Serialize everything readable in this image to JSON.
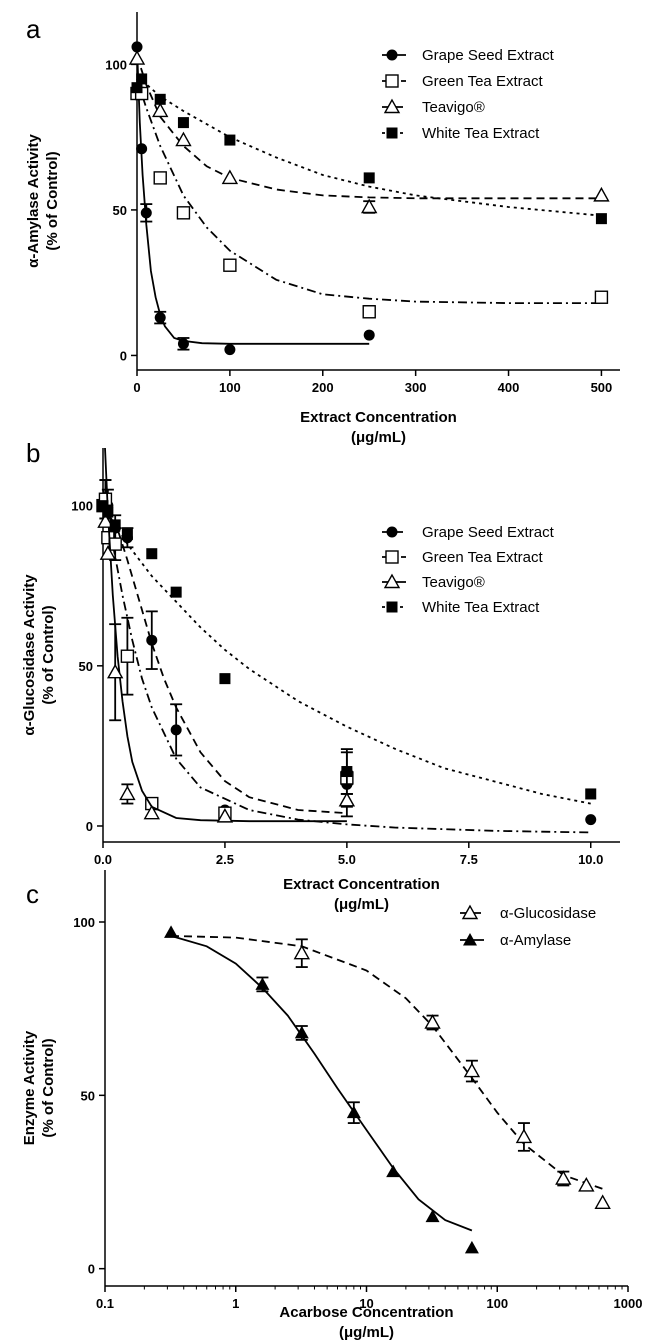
{
  "chart_data": [
    {
      "panel": "a",
      "type": "scatter",
      "xlabel": [
        "Extract Concentration",
        "(μg/mL)"
      ],
      "ylabel": [
        "α-Amylase Activity",
        "(% of Control)"
      ],
      "xlim": [
        0,
        520
      ],
      "ylim": [
        -5,
        118
      ],
      "xticks": [
        0,
        100,
        200,
        300,
        400,
        500
      ],
      "xtick_labels": [
        "0",
        "100",
        "200",
        "300",
        "400",
        "500"
      ],
      "yticks": [
        0,
        50,
        100
      ],
      "ytick_labels": [
        "0",
        "50",
        "100"
      ],
      "legend_position": "top-right",
      "series": [
        {
          "name": "Grape Seed Extract",
          "marker": "filled-circle",
          "line": "solid",
          "x": [
            0,
            5,
            10,
            25,
            50,
            100,
            250
          ],
          "y": [
            106,
            71,
            49,
            13,
            4,
            2,
            7
          ],
          "err": [
            0,
            0,
            3,
            2,
            2,
            0,
            0
          ],
          "fit_x": [
            0,
            3,
            6,
            10,
            15,
            20,
            25,
            30,
            40,
            50,
            70,
            100,
            150,
            200,
            250
          ],
          "fit_y": [
            106,
            80,
            62,
            45,
            29,
            20,
            14,
            10,
            6,
            5,
            4.2,
            4,
            4,
            4,
            4
          ]
        },
        {
          "name": "Green Tea Extract",
          "marker": "open-square",
          "line": "dash-dot",
          "x": [
            0,
            5,
            25,
            50,
            100,
            250,
            500
          ],
          "y": [
            90,
            90,
            61,
            49,
            31,
            15,
            20
          ],
          "err": [
            0,
            0,
            0,
            0,
            0,
            2,
            0
          ],
          "fit_x": [
            0,
            10,
            25,
            50,
            75,
            100,
            150,
            200,
            250,
            300,
            400,
            500
          ],
          "fit_y": [
            95,
            85,
            72,
            55,
            44,
            36,
            26,
            21,
            19.5,
            18.5,
            18,
            18
          ]
        },
        {
          "name": "Teavigo®",
          "marker": "open-triangle",
          "line": "dashed",
          "x": [
            0,
            25,
            50,
            100,
            250,
            500
          ],
          "y": [
            102,
            84,
            74,
            61,
            51,
            55
          ],
          "err": [
            0,
            0,
            0,
            0,
            2,
            0
          ],
          "fit_x": [
            0,
            10,
            25,
            50,
            75,
            100,
            150,
            200,
            250,
            300,
            400,
            500
          ],
          "fit_y": [
            103,
            93,
            82,
            72,
            65,
            61,
            57,
            55,
            54.3,
            54,
            54,
            54
          ]
        },
        {
          "name": "White Tea Extract",
          "marker": "filled-square",
          "line": "dotted",
          "x": [
            0,
            5,
            25,
            50,
            100,
            250,
            500
          ],
          "y": [
            92,
            95,
            88,
            80,
            74,
            61,
            47
          ],
          "err": [
            0,
            0,
            0,
            0,
            0,
            0,
            0
          ],
          "fit_x": [
            0,
            25,
            50,
            100,
            150,
            200,
            250,
            300,
            400,
            500
          ],
          "fit_y": [
            96,
            89,
            84,
            75,
            68,
            62,
            58,
            55,
            51,
            48
          ]
        }
      ]
    },
    {
      "panel": "b",
      "type": "scatter",
      "xlabel": [
        "Extract Concentration",
        "(μg/mL)"
      ],
      "ylabel": [
        "α-Glucosidase Activity",
        "(% of Control)"
      ],
      "xlim": [
        0,
        10.6
      ],
      "ylim": [
        -5,
        118
      ],
      "xticks": [
        0,
        2.5,
        5,
        7.5,
        10
      ],
      "xtick_labels": [
        "0.0",
        "2.5",
        "5.0",
        "7.5",
        "10.0"
      ],
      "yticks": [
        0,
        50,
        100
      ],
      "ytick_labels": [
        "0",
        "50",
        "100"
      ],
      "legend_position": "top-right",
      "series": [
        {
          "name": "Grape Seed Extract",
          "marker": "filled-circle",
          "line": "dashed",
          "x": [
            0.05,
            0.1,
            0.25,
            0.5,
            1,
            1.5,
            2.5,
            5,
            10
          ],
          "y": [
            102,
            100,
            93,
            90,
            58,
            30,
            5,
            13,
            2
          ],
          "err": [
            6,
            5,
            4,
            3,
            9,
            8,
            0,
            10,
            0
          ],
          "fit_x": [
            0,
            0.25,
            0.5,
            0.75,
            1,
            1.25,
            1.5,
            2,
            2.5,
            3,
            4,
            5
          ],
          "fit_y": [
            103,
            95,
            83,
            70,
            57,
            46,
            37,
            23,
            14,
            9,
            5,
            4
          ]
        },
        {
          "name": "Green Tea Extract",
          "marker": "open-square",
          "line": "dash-dot",
          "x": [
            0,
            0.05,
            0.1,
            0.25,
            0.5,
            1,
            2.5,
            5
          ],
          "y": [
            100,
            102,
            90,
            88,
            53,
            7,
            4,
            15
          ],
          "err": [
            0,
            6,
            0,
            5,
            12,
            0,
            0,
            2
          ],
          "fit_x": [
            0,
            0.2,
            0.4,
            0.6,
            0.8,
            1,
            1.5,
            2,
            3,
            4,
            5,
            6,
            7,
            8,
            9,
            10
          ],
          "fit_y": [
            105,
            88,
            72,
            58,
            46,
            37,
            21,
            12,
            5,
            2,
            0.5,
            -0.5,
            -1,
            -1.5,
            -1.8,
            -2
          ]
        },
        {
          "name": "Teavigo®",
          "marker": "open-triangle",
          "line": "solid",
          "x": [
            0.05,
            0.1,
            0.25,
            0.5,
            1,
            2.5,
            5
          ],
          "y": [
            95,
            85,
            48,
            10,
            4,
            3,
            8
          ],
          "err": [
            0,
            0,
            15,
            3,
            0,
            0,
            2
          ],
          "fit_x": [
            0.04,
            0.1,
            0.2,
            0.3,
            0.4,
            0.5,
            0.6,
            0.8,
            1,
            1.5,
            2,
            3,
            4,
            5
          ],
          "fit_y": [
            118,
            98,
            72,
            53,
            39,
            28,
            20,
            11,
            6,
            2.5,
            1.8,
            1.5,
            1.5,
            1.5
          ]
        },
        {
          "name": "White Tea Extract",
          "marker": "filled-square",
          "line": "dotted",
          "x": [
            0,
            0.1,
            0.25,
            0.5,
            1,
            1.5,
            2.5,
            5,
            10
          ],
          "y": [
            100,
            98,
            94,
            91,
            85,
            73,
            46,
            17,
            10
          ],
          "err": [
            0,
            0,
            0,
            0,
            0,
            0,
            0,
            7,
            0
          ],
          "fit_x": [
            0,
            0.5,
            1,
            1.5,
            2,
            2.5,
            3,
            4,
            5,
            6,
            7,
            8,
            9,
            10
          ],
          "fit_y": [
            100,
            88,
            78,
            70,
            62,
            55,
            49,
            39,
            31,
            24,
            18,
            14,
            10,
            7
          ]
        }
      ]
    },
    {
      "panel": "c",
      "type": "scatter",
      "xscale": "log",
      "xlabel": [
        "Acarbose Concentration",
        "(μg/mL)"
      ],
      "ylabel": [
        "Enzyme Activity",
        "(% of Control)"
      ],
      "xlim": [
        0.1,
        1000
      ],
      "ylim": [
        -5,
        115
      ],
      "xticks": [
        0.1,
        1,
        10,
        100,
        1000
      ],
      "xtick_labels": [
        "0.1",
        "1",
        "10",
        "100",
        "1000"
      ],
      "yticks": [
        0,
        50,
        100
      ],
      "ytick_labels": [
        "0",
        "50",
        "100"
      ],
      "legend_position": "top-right",
      "series": [
        {
          "name": "α-Glucosidase",
          "marker": "open-triangle",
          "line": "dashed",
          "x": [
            3.2,
            32,
            64,
            160,
            320,
            480,
            640
          ],
          "y": [
            91,
            71,
            57,
            38,
            26,
            24,
            19
          ],
          "err": [
            4,
            2,
            3,
            4,
            2,
            0,
            0
          ],
          "fit_x": [
            0.32,
            1,
            3.2,
            10,
            20,
            32,
            64,
            100,
            160,
            320,
            640
          ],
          "fit_y": [
            96,
            95.5,
            93,
            86,
            78,
            70,
            55,
            45,
            36,
            27,
            23
          ]
        },
        {
          "name": "α-Amylase",
          "marker": "filled-triangle",
          "line": "solid",
          "x": [
            0.32,
            1.6,
            3.2,
            8,
            16,
            32,
            64
          ],
          "y": [
            97,
            82,
            68,
            45,
            28,
            15,
            6
          ],
          "err": [
            0,
            2,
            2,
            3,
            0,
            0,
            0
          ],
          "fit_x": [
            0.32,
            0.6,
            1,
            1.6,
            2.5,
            4,
            6,
            10,
            16,
            25,
            40,
            64
          ],
          "fit_y": [
            96,
            93,
            88,
            81,
            73,
            62,
            52,
            40,
            29,
            20,
            14,
            11
          ]
        }
      ]
    }
  ]
}
